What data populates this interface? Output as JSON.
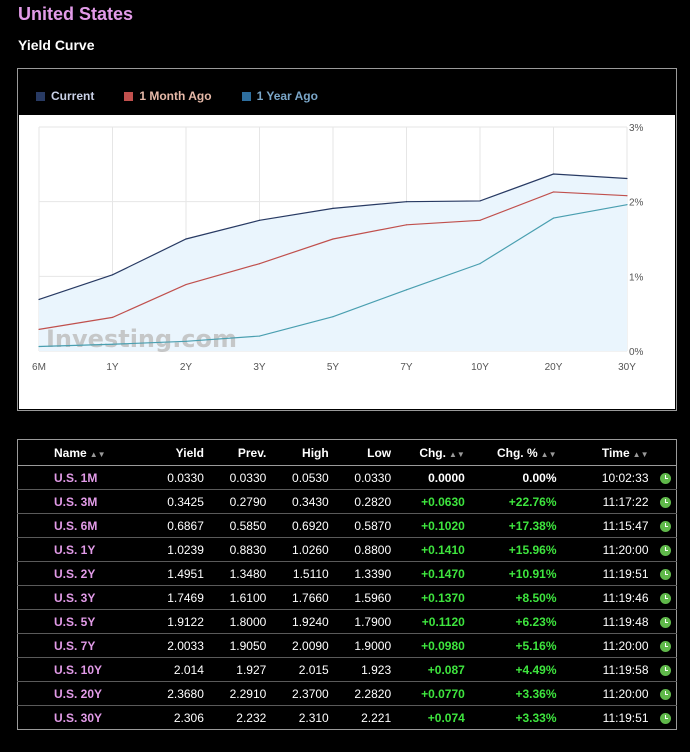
{
  "header": {
    "country": "United States",
    "section": "Yield Curve"
  },
  "colors": {
    "current": "#283a63",
    "month_ago": "#c0504d",
    "year_ago": "#4a9fb0",
    "legend_current": "#283a63",
    "legend_month": "#c0504d",
    "legend_year": "#2e6e9e",
    "legend_text_year": "#7aa6c8",
    "area_fill": "#eaf5fd"
  },
  "chart_data": {
    "type": "line",
    "x": [
      "6M",
      "1Y",
      "2Y",
      "3Y",
      "5Y",
      "7Y",
      "10Y",
      "20Y",
      "30Y"
    ],
    "series": [
      {
        "name": "Current",
        "values": [
          0.69,
          1.02,
          1.5,
          1.75,
          1.91,
          2.0,
          2.01,
          2.37,
          2.31
        ]
      },
      {
        "name": "1 Month Ago",
        "values": [
          0.29,
          0.45,
          0.89,
          1.17,
          1.5,
          1.69,
          1.75,
          2.13,
          2.08
        ]
      },
      {
        "name": "Year Ago",
        "values": [
          0.06,
          0.09,
          0.13,
          0.2,
          0.46,
          0.82,
          1.17,
          1.78,
          1.96
        ]
      }
    ],
    "y_ticks": [
      "3%",
      "2%",
      "1%",
      "0%"
    ],
    "ylim": [
      0,
      3
    ],
    "legend_position": "top-left",
    "grid": true
  },
  "legend": {
    "current": "Current",
    "month": "1 Month Ago",
    "year": "1 Year Ago"
  },
  "watermark": "Investing.com",
  "table": {
    "headers": [
      "Name",
      "Yield",
      "Prev.",
      "High",
      "Low",
      "Chg.",
      "Chg. %",
      "Time"
    ],
    "rows": [
      {
        "name": "U.S. 1M",
        "yield": "0.0330",
        "prev": "0.0330",
        "high": "0.0530",
        "low": "0.0330",
        "chg": "0.0000",
        "chg_pct": "0.00%",
        "time": "10:02:33",
        "pos": false
      },
      {
        "name": "U.S. 3M",
        "yield": "0.3425",
        "prev": "0.2790",
        "high": "0.3430",
        "low": "0.2820",
        "chg": "+0.0630",
        "chg_pct": "+22.76%",
        "time": "11:17:22",
        "pos": true
      },
      {
        "name": "U.S. 6M",
        "yield": "0.6867",
        "prev": "0.5850",
        "high": "0.6920",
        "low": "0.5870",
        "chg": "+0.1020",
        "chg_pct": "+17.38%",
        "time": "11:15:47",
        "pos": true
      },
      {
        "name": "U.S. 1Y",
        "yield": "1.0239",
        "prev": "0.8830",
        "high": "1.0260",
        "low": "0.8800",
        "chg": "+0.1410",
        "chg_pct": "+15.96%",
        "time": "11:20:00",
        "pos": true
      },
      {
        "name": "U.S. 2Y",
        "yield": "1.4951",
        "prev": "1.3480",
        "high": "1.5110",
        "low": "1.3390",
        "chg": "+0.1470",
        "chg_pct": "+10.91%",
        "time": "11:19:51",
        "pos": true
      },
      {
        "name": "U.S. 3Y",
        "yield": "1.7469",
        "prev": "1.6100",
        "high": "1.7660",
        "low": "1.5960",
        "chg": "+0.1370",
        "chg_pct": "+8.50%",
        "time": "11:19:46",
        "pos": true
      },
      {
        "name": "U.S. 5Y",
        "yield": "1.9122",
        "prev": "1.8000",
        "high": "1.9240",
        "low": "1.7900",
        "chg": "+0.1120",
        "chg_pct": "+6.23%",
        "time": "11:19:48",
        "pos": true
      },
      {
        "name": "U.S. 7Y",
        "yield": "2.0033",
        "prev": "1.9050",
        "high": "2.0090",
        "low": "1.9000",
        "chg": "+0.0980",
        "chg_pct": "+5.16%",
        "time": "11:20:00",
        "pos": true
      },
      {
        "name": "U.S. 10Y",
        "yield": "2.014",
        "prev": "1.927",
        "high": "2.015",
        "low": "1.923",
        "chg": "+0.087",
        "chg_pct": "+4.49%",
        "time": "11:19:58",
        "pos": true
      },
      {
        "name": "U.S. 20Y",
        "yield": "2.3680",
        "prev": "2.2910",
        "high": "2.3700",
        "low": "2.2820",
        "chg": "+0.0770",
        "chg_pct": "+3.36%",
        "time": "11:20:00",
        "pos": true
      },
      {
        "name": "U.S. 30Y",
        "yield": "2.306",
        "prev": "2.232",
        "high": "2.310",
        "low": "2.221",
        "chg": "+0.074",
        "chg_pct": "+3.33%",
        "time": "11:19:51",
        "pos": true
      }
    ]
  }
}
